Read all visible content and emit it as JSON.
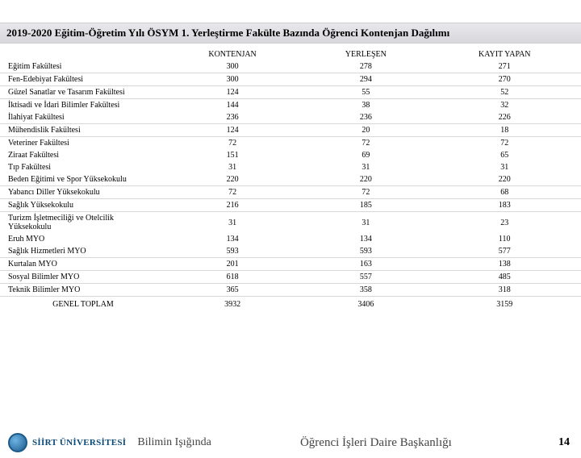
{
  "title": "2019-2020 Eğitim-Öğretim Yılı ÖSYM 1. Yerleştirme Fakülte Bazında Öğrenci Kontenjan Dağılımı",
  "columns": {
    "c0": "",
    "c1": "KONTENJAN",
    "c2": "YERLEŞEN",
    "c3": "KAYIT YAPAN"
  },
  "footer": {
    "university": "SİİRT ÜNİVERSİTESİ",
    "slogan": "Bilimin Işığında",
    "center": "Öğrenci İşleri Daire Başkanlığı",
    "page": "14"
  },
  "groups": [
    {
      "rows": [
        {
          "f": "Eğitim Fakültesi",
          "a": "300",
          "b": "278",
          "c": "271"
        }
      ]
    },
    {
      "rows": [
        {
          "f": "Fen-Edebiyat Fakültesi",
          "a": "300",
          "b": "294",
          "c": "270"
        }
      ]
    },
    {
      "rows": [
        {
          "f": "Güzel Sanatlar ve Tasarım Fakültesi",
          "a": "124",
          "b": "55",
          "c": "52"
        }
      ]
    },
    {
      "rows": [
        {
          "f": "İktisadi ve İdari Bilimler Fakültesi",
          "a": "144",
          "b": "38",
          "c": "32"
        },
        {
          "f": "İlahiyat Fakültesi",
          "a": "236",
          "b": "236",
          "c": "226"
        }
      ]
    },
    {
      "rows": [
        {
          "f": "Mühendislik Fakültesi",
          "a": "124",
          "b": "20",
          "c": "18"
        }
      ]
    },
    {
      "rows": [
        {
          "f": "Veteriner Fakültesi",
          "a": "72",
          "b": "72",
          "c": "72"
        },
        {
          "f": "Ziraat Fakültesi",
          "a": "151",
          "b": "69",
          "c": "65"
        },
        {
          "f": "Tıp Fakültesi",
          "a": "31",
          "b": "31",
          "c": "31"
        },
        {
          "f": "Beden Eğitimi ve Spor Yüksekokulu",
          "a": "220",
          "b": "220",
          "c": "220"
        }
      ]
    },
    {
      "rows": [
        {
          "f": "Yabancı Diller Yüksekokulu",
          "a": "72",
          "b": "72",
          "c": "68"
        }
      ]
    },
    {
      "rows": [
        {
          "f": "Sağlık Yüksekokulu",
          "a": "216",
          "b": "185",
          "c": "183"
        }
      ]
    },
    {
      "rows": [
        {
          "f": "Turizm İşletmeciliği ve Otelcilik\nYüksekokulu",
          "a": "31",
          "b": "31",
          "c": "23"
        },
        {
          "f": "Eruh MYO",
          "a": "134",
          "b": "134",
          "c": "110"
        },
        {
          "f": "Sağlık Hizmetleri MYO",
          "a": "593",
          "b": "593",
          "c": "577"
        }
      ]
    },
    {
      "rows": [
        {
          "f": "Kurtalan MYO",
          "a": "201",
          "b": "163",
          "c": "138"
        }
      ]
    },
    {
      "rows": [
        {
          "f": "Sosyal Bilimler MYO",
          "a": "618",
          "b": "557",
          "c": "485"
        }
      ]
    },
    {
      "rows": [
        {
          "f": "Teknik Bilimler MYO",
          "a": "365",
          "b": "358",
          "c": "318"
        }
      ]
    }
  ],
  "total": {
    "f": "GENEL TOPLAM",
    "a": "3932",
    "b": "3406",
    "c": "3159"
  }
}
